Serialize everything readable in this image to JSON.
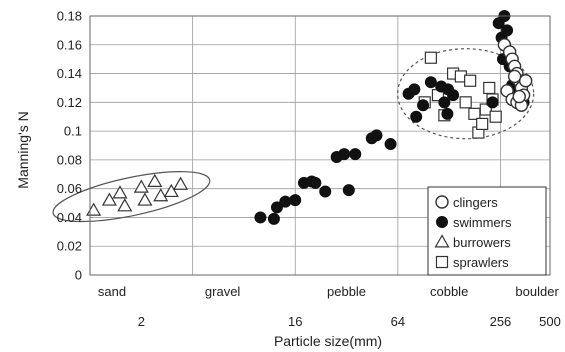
{
  "chart_data": {
    "type": "scatter",
    "title": "",
    "xlabel": "Particle size(mm)",
    "ylabel": "Manning's N",
    "x_scale": "log2",
    "xlim": [
      1,
      500
    ],
    "ylim": [
      0,
      0.18
    ],
    "y_ticks": [
      "0",
      "0.02",
      "0.04",
      "0.06",
      "0.08",
      "0.1",
      "0.12",
      "0.14",
      "0.16",
      "0.18"
    ],
    "x_ticks": [
      {
        "value": 2,
        "label": "2"
      },
      {
        "value": 16,
        "label": "16"
      },
      {
        "value": 64,
        "label": "64"
      },
      {
        "value": 256,
        "label": "256"
      },
      {
        "value": 500,
        "label": "500"
      }
    ],
    "size_classes": [
      {
        "label": "sand",
        "value": 1.0
      },
      {
        "label": "gravel",
        "value": 6.0
      },
      {
        "label": "pebble",
        "value": 32
      },
      {
        "label": "cobble",
        "value": 128
      },
      {
        "label": "boulder",
        "value": 420
      }
    ],
    "grid": true,
    "legend_position": "bottom-right",
    "series": [
      {
        "name": "clingers",
        "marker": "open-circle",
        "x": [
          270,
          290,
          300,
          310,
          320,
          330,
          340,
          350,
          280,
          300,
          320,
          340,
          360,
          330,
          310
        ],
        "y": [
          0.16,
          0.155,
          0.15,
          0.145,
          0.14,
          0.135,
          0.13,
          0.125,
          0.128,
          0.122,
          0.12,
          0.118,
          0.135,
          0.124,
          0.138
        ]
      },
      {
        "name": "swimmers",
        "marker": "filled-circle",
        "x": [
          10.0,
          12.0,
          12.5,
          14.0,
          16.0,
          18.0,
          20.0,
          21.0,
          24.0,
          28.0,
          31.0,
          33.0,
          36.0,
          45.0,
          48.0,
          58.0,
          74.0,
          80.0,
          82.0,
          90.0,
          100.0,
          115.0,
          120.0,
          125.0,
          126.0,
          135.0,
          230.0,
          250.0,
          260.0,
          270.0,
          280.0,
          290.0,
          300.0,
          310.0,
          320.0,
          340.0,
          350.0,
          265.0
        ],
        "y": [
          0.04,
          0.039,
          0.047,
          0.051,
          0.052,
          0.064,
          0.065,
          0.064,
          0.058,
          0.082,
          0.084,
          0.059,
          0.084,
          0.095,
          0.097,
          0.091,
          0.126,
          0.129,
          0.11,
          0.118,
          0.134,
          0.131,
          0.12,
          0.112,
          0.129,
          0.125,
          0.12,
          0.175,
          0.165,
          0.18,
          0.17,
          0.145,
          0.132,
          0.13,
          0.128,
          0.12,
          0.12,
          0.15
        ]
      },
      {
        "name": "burrowers",
        "marker": "open-triangle",
        "x": [
          1.05,
          1.3,
          1.5,
          1.6,
          2.0,
          2.1,
          2.4,
          2.6,
          3.0,
          3.4
        ],
        "y": [
          0.045,
          0.052,
          0.057,
          0.048,
          0.061,
          0.052,
          0.065,
          0.055,
          0.058,
          0.063
        ]
      },
      {
        "name": "sprawlers",
        "marker": "open-square",
        "x": [
          100,
          92,
          110,
          120,
          135,
          150,
          160,
          170,
          180,
          190,
          200,
          210,
          220,
          240,
          230
        ],
        "y": [
          0.151,
          0.12,
          0.125,
          0.111,
          0.14,
          0.138,
          0.12,
          0.135,
          0.112,
          0.099,
          0.105,
          0.115,
          0.13,
          0.11,
          0.122
        ]
      }
    ],
    "annotations": [
      {
        "type": "ellipse",
        "style": "solid",
        "group": "burrowers"
      },
      {
        "type": "ellipse",
        "style": "dashed",
        "group": "sprawlers"
      }
    ]
  }
}
